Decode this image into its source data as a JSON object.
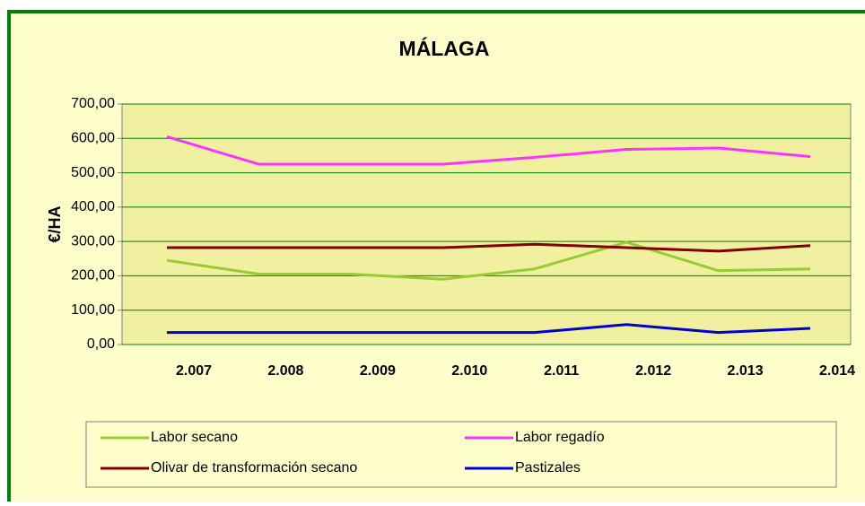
{
  "chart_data": {
    "type": "line",
    "title": "MÁLAGA",
    "y_label": "€/HA",
    "categories": [
      "2.007",
      "2.008",
      "2.009",
      "2.010",
      "2.011",
      "2.012",
      "2.013",
      "2.014"
    ],
    "series": [
      {
        "name": "Labor secano",
        "color": "#99CC33",
        "values": [
          245,
          205,
          205,
          190,
          220,
          298,
          215,
          220
        ]
      },
      {
        "name": "Labor regadío",
        "color": "#FF33FF",
        "values": [
          605,
          525,
          525,
          525,
          545,
          568,
          572,
          547
        ]
      },
      {
        "name": "Olivar de transformación secano",
        "color": "#800000",
        "values": [
          282,
          282,
          282,
          282,
          292,
          282,
          272,
          288
        ]
      },
      {
        "name": "Pastizales",
        "color": "#0000CC",
        "values": [
          35,
          35,
          35,
          35,
          35,
          58,
          35,
          47
        ]
      }
    ],
    "ylim": [
      0,
      700
    ],
    "yticks": [
      {
        "value": 0,
        "label": "0,00"
      },
      {
        "value": 100,
        "label": "100,00"
      },
      {
        "value": 200,
        "label": "200,00"
      },
      {
        "value": 300,
        "label": "300,00"
      },
      {
        "value": 400,
        "label": "400,00"
      },
      {
        "value": 500,
        "label": "500,00"
      },
      {
        "value": 600,
        "label": "600,00"
      },
      {
        "value": 700,
        "label": "700,00"
      }
    ],
    "grid": true,
    "legend": "bottom"
  }
}
